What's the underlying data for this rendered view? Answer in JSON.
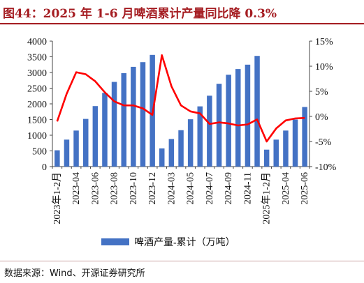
{
  "title": "图44：2025 年 1-6 月啤酒累计产量同比降 0.3%",
  "source": "数据来源：Wind、开源证券研究所",
  "colors": {
    "bar": "#4472c4",
    "line": "#ff0000",
    "title": "#a51d22"
  },
  "chart_data": {
    "type": "bar+line",
    "categories": [
      "2023年1-2月",
      "2023-03",
      "2023-04",
      "2023-05",
      "2023-06",
      "2023-07",
      "2023-08",
      "2023-09",
      "2023-10",
      "2023-11",
      "2023-12",
      "2024年1-2月",
      "2024-03",
      "2024-04",
      "2024-05",
      "2024-06",
      "2024-07",
      "2024-08",
      "2024-09",
      "2024-10",
      "2024-11",
      "2024-12",
      "2025年1-2月",
      "2025-03",
      "2025-04",
      "2025-05",
      "2025-06"
    ],
    "x_tick_labels": [
      "2023年1-2月",
      "2023-04",
      "2023-06",
      "2023-08",
      "2023-10",
      "2023-12",
      "2024-03",
      "2024-05",
      "2024-07",
      "2024-09",
      "2024-11",
      "2025年1-2月",
      "2025-04",
      "2025-06"
    ],
    "series": [
      {
        "name": "啤酒产量-累计（万吨）",
        "type": "bar",
        "axis": "left",
        "values": [
          520,
          860,
          1150,
          1520,
          1930,
          2350,
          2700,
          2980,
          3180,
          3330,
          3560,
          580,
          880,
          1160,
          1510,
          1920,
          2260,
          2640,
          2930,
          3110,
          3250,
          3530,
          540,
          860,
          1150,
          1500,
          1900
        ]
      },
      {
        "type": "line",
        "axis": "right",
        "values": [
          -1.0,
          4.5,
          8.8,
          8.4,
          7.0,
          4.8,
          3.0,
          2.2,
          2.2,
          1.6,
          0.3,
          12.2,
          6.0,
          2.2,
          1.0,
          0.6,
          -1.5,
          -1.2,
          -1.4,
          -1.8,
          -1.6,
          -0.6,
          -5.0,
          -2.4,
          -0.8,
          -0.4,
          -0.3
        ]
      }
    ],
    "left_axis": {
      "min": 0,
      "max": 4000,
      "ticks": [
        "0",
        "500",
        "1000",
        "1500",
        "2000",
        "2500",
        "3000",
        "3500",
        "4000"
      ]
    },
    "right_axis": {
      "min": -10,
      "max": 15,
      "ticks": [
        "-10%",
        "-5%",
        "0%",
        "5%",
        "10%",
        "15%"
      ]
    },
    "legend": {
      "position": "bottom",
      "label": "啤酒产量-累计（万吨）"
    }
  }
}
